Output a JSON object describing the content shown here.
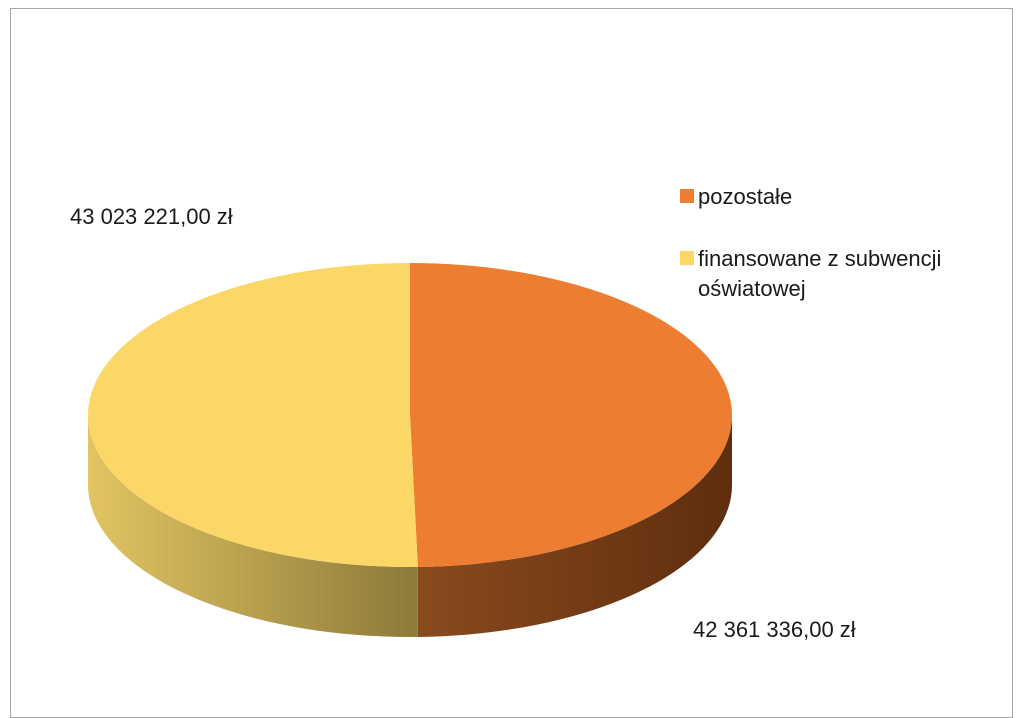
{
  "chart_data": {
    "type": "pie",
    "style": "3d",
    "series": [
      {
        "name": "pozostałe",
        "value": 42361336.0,
        "label": "42 361 336,00 zł",
        "color": "#ED7D31",
        "side_dark": "#5E2E0E",
        "side_light": "#8A4A1E"
      },
      {
        "name": "finansowane z subwencji oświatowej",
        "value": 43023221.0,
        "label": "43 023 221,00 zł",
        "color": "#FAD766",
        "side_dark": "#8C7A3A",
        "side_light": "#E2C462"
      }
    ],
    "legend_position": "right",
    "start_angle": "top",
    "direction": "clockwise"
  }
}
